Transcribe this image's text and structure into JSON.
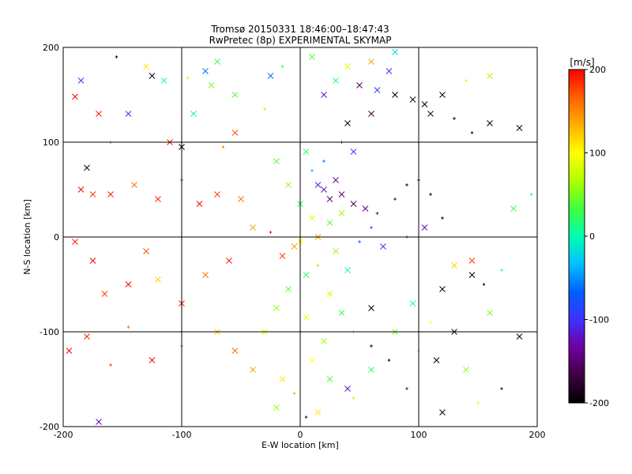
{
  "chart_data": {
    "type": "scatter",
    "title": "Tromsø 20150331 18:46:00–18:47:43",
    "subtitle": "RwPretec (8p) EXPERIMENTAL SKYMAP",
    "xlabel": "E-W location [km]",
    "ylabel": "N-S location [km]",
    "xlim": [
      -200,
      200
    ],
    "ylim": [
      -200,
      200
    ],
    "xticks": [
      -200,
      -100,
      0,
      100,
      200
    ],
    "yticks": [
      -200,
      -100,
      0,
      100,
      200
    ],
    "xtick_labels": [
      "-200",
      "-100",
      "0",
      "100",
      "200"
    ],
    "ytick_labels": [
      "-200",
      "-100",
      "0",
      "100",
      "200"
    ],
    "grid": true,
    "markers": [
      "x",
      "+"
    ],
    "colorbar": {
      "label": "[m/s]",
      "range": [
        -200,
        200
      ],
      "ticks": [
        200,
        100,
        0,
        -100,
        -200
      ],
      "tick_labels": [
        "200",
        "100",
        "0",
        "-100",
        "-200"
      ],
      "placement": "right",
      "colors": [
        "#000000",
        "#400040",
        "#7000a0",
        "#4030ff",
        "#0060ff",
        "#00c0ff",
        "#00ffb0",
        "#40ff40",
        "#b0ff00",
        "#ffff00",
        "#ffb000",
        "#ff6000",
        "#ff0000"
      ]
    },
    "points": [
      {
        "x": 80,
        "y": 150,
        "v": -200,
        "m": "x"
      },
      {
        "x": 95,
        "y": 145,
        "v": -190,
        "m": "x"
      },
      {
        "x": 105,
        "y": 140,
        "v": -200,
        "m": "x"
      },
      {
        "x": 110,
        "y": 130,
        "v": -180,
        "m": "x"
      },
      {
        "x": 120,
        "y": 150,
        "v": -200,
        "m": "x"
      },
      {
        "x": 130,
        "y": 125,
        "v": -200,
        "m": "+"
      },
      {
        "x": 145,
        "y": 110,
        "v": -190,
        "m": "+"
      },
      {
        "x": 160,
        "y": 120,
        "v": -200,
        "m": "x"
      },
      {
        "x": 185,
        "y": 115,
        "v": -200,
        "m": "x"
      },
      {
        "x": 60,
        "y": 130,
        "v": -170,
        "m": "x"
      },
      {
        "x": 40,
        "y": 120,
        "v": -200,
        "m": "x"
      },
      {
        "x": 50,
        "y": 160,
        "v": -160,
        "m": "x"
      },
      {
        "x": 30,
        "y": 60,
        "v": -140,
        "m": "x"
      },
      {
        "x": 25,
        "y": 40,
        "v": -150,
        "m": "x"
      },
      {
        "x": 35,
        "y": 45,
        "v": -150,
        "m": "x"
      },
      {
        "x": 45,
        "y": 35,
        "v": -160,
        "m": "x"
      },
      {
        "x": 20,
        "y": 50,
        "v": -120,
        "m": "x"
      },
      {
        "x": 15,
        "y": 55,
        "v": -110,
        "m": "x"
      },
      {
        "x": 55,
        "y": 30,
        "v": -140,
        "m": "x"
      },
      {
        "x": 65,
        "y": 25,
        "v": -150,
        "m": "+"
      },
      {
        "x": 80,
        "y": 40,
        "v": -170,
        "m": "+"
      },
      {
        "x": 90,
        "y": 55,
        "v": -200,
        "m": "+"
      },
      {
        "x": 100,
        "y": 60,
        "v": -190,
        "m": "+"
      },
      {
        "x": 110,
        "y": 45,
        "v": -200,
        "m": "+"
      },
      {
        "x": 120,
        "y": 20,
        "v": -200,
        "m": "+"
      },
      {
        "x": 105,
        "y": 10,
        "v": -120,
        "m": "x"
      },
      {
        "x": 90,
        "y": 0,
        "v": -110,
        "m": "+"
      },
      {
        "x": 70,
        "y": -10,
        "v": -100,
        "m": "x"
      },
      {
        "x": 60,
        "y": 10,
        "v": -90,
        "m": "+"
      },
      {
        "x": 50,
        "y": -5,
        "v": -70,
        "m": "+"
      },
      {
        "x": 45,
        "y": 90,
        "v": -100,
        "m": "x"
      },
      {
        "x": 35,
        "y": 100,
        "v": -80,
        "m": "+"
      },
      {
        "x": 20,
        "y": 80,
        "v": -60,
        "m": "+"
      },
      {
        "x": 10,
        "y": 70,
        "v": -40,
        "m": "+"
      },
      {
        "x": 65,
        "y": 155,
        "v": -90,
        "m": "x"
      },
      {
        "x": 75,
        "y": 175,
        "v": -100,
        "m": "x"
      },
      {
        "x": 20,
        "y": 150,
        "v": -120,
        "m": "x"
      },
      {
        "x": -100,
        "y": 95,
        "v": -200,
        "m": "x"
      },
      {
        "x": -180,
        "y": 73,
        "v": -200,
        "m": "x"
      },
      {
        "x": -155,
        "y": 190,
        "v": -200,
        "m": "+"
      },
      {
        "x": -125,
        "y": 170,
        "v": -200,
        "m": "x"
      },
      {
        "x": 120,
        "y": -55,
        "v": -200,
        "m": "x"
      },
      {
        "x": 130,
        "y": -100,
        "v": -180,
        "m": "x"
      },
      {
        "x": 115,
        "y": -130,
        "v": -200,
        "m": "x"
      },
      {
        "x": 120,
        "y": -185,
        "v": -200,
        "m": "x"
      },
      {
        "x": 60,
        "y": -115,
        "v": -190,
        "m": "+"
      },
      {
        "x": 40,
        "y": -160,
        "v": -120,
        "m": "x"
      },
      {
        "x": 75,
        "y": -130,
        "v": -200,
        "m": "+"
      },
      {
        "x": 90,
        "y": -160,
        "v": -150,
        "m": "+"
      },
      {
        "x": 60,
        "y": -75,
        "v": -200,
        "m": "x"
      },
      {
        "x": 145,
        "y": -40,
        "v": -200,
        "m": "x"
      },
      {
        "x": 155,
        "y": -50,
        "v": -190,
        "m": "+"
      },
      {
        "x": 185,
        "y": -105,
        "v": -200,
        "m": "x"
      },
      {
        "x": 170,
        "y": -160,
        "v": -180,
        "m": "+"
      },
      {
        "x": 5,
        "y": -190,
        "v": -170,
        "m": "+"
      },
      {
        "x": -170,
        "y": -195,
        "v": -130,
        "m": "x"
      },
      {
        "x": -185,
        "y": 165,
        "v": -100,
        "m": "x"
      },
      {
        "x": -145,
        "y": 130,
        "v": -90,
        "m": "x"
      },
      {
        "x": -80,
        "y": 175,
        "v": -60,
        "m": "x"
      },
      {
        "x": -25,
        "y": 170,
        "v": -60,
        "m": "x"
      },
      {
        "x": -90,
        "y": 130,
        "v": 0,
        "m": "x"
      },
      {
        "x": -55,
        "y": 150,
        "v": 40,
        "m": "x"
      },
      {
        "x": -70,
        "y": 185,
        "v": 30,
        "m": "x"
      },
      {
        "x": -30,
        "y": 135,
        "v": 60,
        "m": "+"
      },
      {
        "x": -15,
        "y": 180,
        "v": 20,
        "m": "+"
      },
      {
        "x": 10,
        "y": 190,
        "v": 40,
        "m": "x"
      },
      {
        "x": 40,
        "y": 180,
        "v": 80,
        "m": "x"
      },
      {
        "x": 60,
        "y": 185,
        "v": 140,
        "m": "x"
      },
      {
        "x": 80,
        "y": 195,
        "v": -20,
        "m": "x"
      },
      {
        "x": 30,
        "y": 165,
        "v": 20,
        "m": "x"
      },
      {
        "x": -130,
        "y": 180,
        "v": 110,
        "m": "x"
      },
      {
        "x": -115,
        "y": 165,
        "v": 10,
        "m": "x"
      },
      {
        "x": -170,
        "y": 130,
        "v": 190,
        "m": "x"
      },
      {
        "x": -190,
        "y": 148,
        "v": 200,
        "m": "x"
      },
      {
        "x": -160,
        "y": 100,
        "v": 170,
        "m": "+"
      },
      {
        "x": -110,
        "y": 100,
        "v": 190,
        "m": "x"
      },
      {
        "x": -55,
        "y": 110,
        "v": 170,
        "m": "x"
      },
      {
        "x": -65,
        "y": 95,
        "v": 150,
        "m": "+"
      },
      {
        "x": -160,
        "y": 45,
        "v": 190,
        "m": "x"
      },
      {
        "x": -185,
        "y": 50,
        "v": 200,
        "m": "x"
      },
      {
        "x": -175,
        "y": 45,
        "v": 180,
        "m": "x"
      },
      {
        "x": -140,
        "y": 55,
        "v": 160,
        "m": "x"
      },
      {
        "x": -120,
        "y": 40,
        "v": 190,
        "m": "x"
      },
      {
        "x": -100,
        "y": 60,
        "v": 200,
        "m": "+"
      },
      {
        "x": -85,
        "y": 35,
        "v": 200,
        "m": "x"
      },
      {
        "x": -70,
        "y": 45,
        "v": 180,
        "m": "x"
      },
      {
        "x": -50,
        "y": 40,
        "v": 160,
        "m": "x"
      },
      {
        "x": -40,
        "y": 10,
        "v": 140,
        "m": "x"
      },
      {
        "x": -25,
        "y": 5,
        "v": 200,
        "m": "+"
      },
      {
        "x": -15,
        "y": -20,
        "v": 180,
        "m": "x"
      },
      {
        "x": -5,
        "y": -10,
        "v": 140,
        "m": "x"
      },
      {
        "x": -60,
        "y": -25,
        "v": 190,
        "m": "x"
      },
      {
        "x": -80,
        "y": -40,
        "v": 160,
        "m": "x"
      },
      {
        "x": -130,
        "y": -15,
        "v": 170,
        "m": "x"
      },
      {
        "x": -175,
        "y": -25,
        "v": 200,
        "m": "x"
      },
      {
        "x": -190,
        "y": -5,
        "v": 190,
        "m": "x"
      },
      {
        "x": -165,
        "y": -60,
        "v": 180,
        "m": "x"
      },
      {
        "x": -145,
        "y": -50,
        "v": 200,
        "m": "x"
      },
      {
        "x": -120,
        "y": -45,
        "v": 120,
        "m": "x"
      },
      {
        "x": -100,
        "y": -70,
        "v": 190,
        "m": "x"
      },
      {
        "x": -145,
        "y": -95,
        "v": 160,
        "m": "+"
      },
      {
        "x": -180,
        "y": -105,
        "v": 190,
        "m": "x"
      },
      {
        "x": -195,
        "y": -120,
        "v": 200,
        "m": "x"
      },
      {
        "x": -160,
        "y": -135,
        "v": 180,
        "m": "+"
      },
      {
        "x": -125,
        "y": -130,
        "v": 200,
        "m": "x"
      },
      {
        "x": -100,
        "y": -115,
        "v": 170,
        "m": "+"
      },
      {
        "x": -70,
        "y": -100,
        "v": 120,
        "m": "x"
      },
      {
        "x": -55,
        "y": -120,
        "v": 160,
        "m": "x"
      },
      {
        "x": -40,
        "y": -140,
        "v": 140,
        "m": "x"
      },
      {
        "x": -30,
        "y": -100,
        "v": 90,
        "m": "x"
      },
      {
        "x": -20,
        "y": -75,
        "v": 60,
        "m": "x"
      },
      {
        "x": -10,
        "y": -55,
        "v": 40,
        "m": "x"
      },
      {
        "x": 5,
        "y": -40,
        "v": 20,
        "m": "x"
      },
      {
        "x": 15,
        "y": -30,
        "v": 50,
        "m": "+"
      },
      {
        "x": 25,
        "y": -60,
        "v": 80,
        "m": "x"
      },
      {
        "x": 35,
        "y": -80,
        "v": 30,
        "m": "x"
      },
      {
        "x": 20,
        "y": -110,
        "v": 60,
        "m": "x"
      },
      {
        "x": 10,
        "y": -130,
        "v": 100,
        "m": "x"
      },
      {
        "x": 25,
        "y": -150,
        "v": 40,
        "m": "x"
      },
      {
        "x": 45,
        "y": -170,
        "v": 70,
        "m": "+"
      },
      {
        "x": 15,
        "y": -185,
        "v": 110,
        "m": "x"
      },
      {
        "x": -5,
        "y": -165,
        "v": 140,
        "m": "+"
      },
      {
        "x": -20,
        "y": -180,
        "v": 60,
        "m": "x"
      },
      {
        "x": 60,
        "y": -140,
        "v": 20,
        "m": "x"
      },
      {
        "x": 80,
        "y": -100,
        "v": 50,
        "m": "x"
      },
      {
        "x": 95,
        "y": -70,
        "v": 10,
        "m": "x"
      },
      {
        "x": 110,
        "y": -90,
        "v": 100,
        "m": "+"
      },
      {
        "x": 100,
        "y": -120,
        "v": 30,
        "m": "+"
      },
      {
        "x": 140,
        "y": -140,
        "v": 60,
        "m": "x"
      },
      {
        "x": 150,
        "y": -175,
        "v": 90,
        "m": "+"
      },
      {
        "x": 160,
        "y": -80,
        "v": 50,
        "m": "x"
      },
      {
        "x": 170,
        "y": -35,
        "v": 10,
        "m": "+"
      },
      {
        "x": 145,
        "y": -25,
        "v": 180,
        "m": "x"
      },
      {
        "x": 130,
        "y": -30,
        "v": 120,
        "m": "x"
      },
      {
        "x": 180,
        "y": 30,
        "v": 30,
        "m": "x"
      },
      {
        "x": 195,
        "y": 45,
        "v": 20,
        "m": "+"
      },
      {
        "x": 160,
        "y": 170,
        "v": 70,
        "m": "x"
      },
      {
        "x": 140,
        "y": 165,
        "v": 110,
        "m": "+"
      },
      {
        "x": -75,
        "y": 160,
        "v": 50,
        "m": "x"
      },
      {
        "x": -95,
        "y": 168,
        "v": 80,
        "m": "+"
      },
      {
        "x": 35,
        "y": 25,
        "v": 60,
        "m": "x"
      },
      {
        "x": 25,
        "y": 15,
        "v": 40,
        "m": "x"
      },
      {
        "x": 10,
        "y": 20,
        "v": 80,
        "m": "x"
      },
      {
        "x": 0,
        "y": 35,
        "v": 20,
        "m": "x"
      },
      {
        "x": -10,
        "y": 55,
        "v": 60,
        "m": "x"
      },
      {
        "x": -20,
        "y": 80,
        "v": 40,
        "m": "x"
      },
      {
        "x": 5,
        "y": 90,
        "v": 20,
        "m": "x"
      },
      {
        "x": 0,
        "y": -5,
        "v": 100,
        "m": "x"
      },
      {
        "x": 15,
        "y": 0,
        "v": 140,
        "m": "x"
      },
      {
        "x": 30,
        "y": -15,
        "v": 60,
        "m": "x"
      },
      {
        "x": 40,
        "y": -35,
        "v": 10,
        "m": "x"
      },
      {
        "x": 5,
        "y": -85,
        "v": 90,
        "m": "x"
      },
      {
        "x": -15,
        "y": -150,
        "v": 110,
        "m": "x"
      },
      {
        "x": 45,
        "y": -100,
        "v": 40,
        "m": "+"
      }
    ]
  }
}
